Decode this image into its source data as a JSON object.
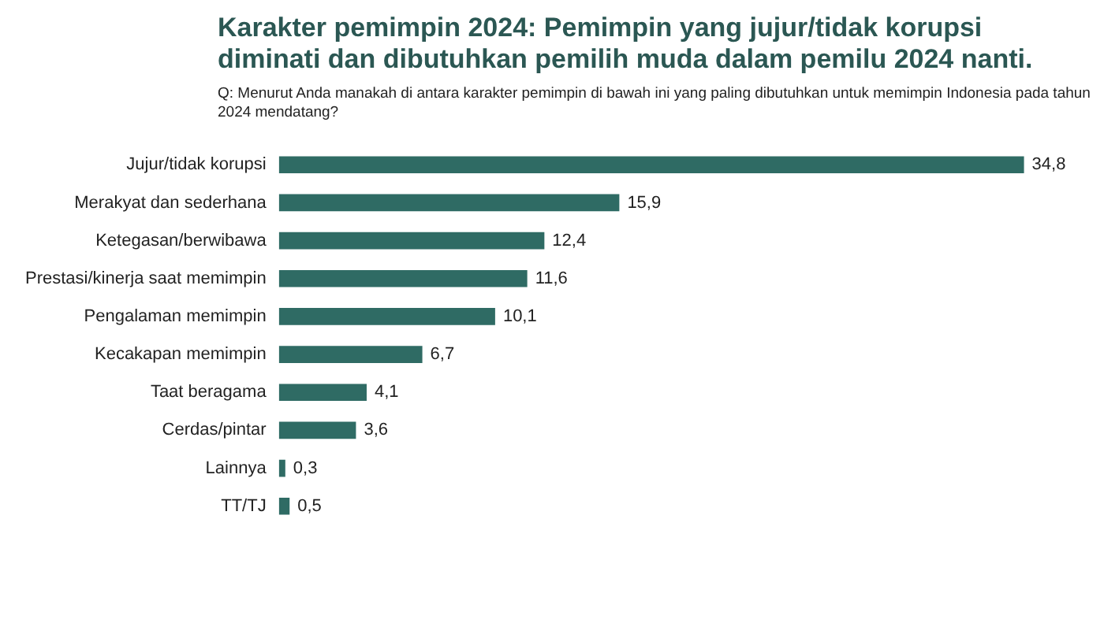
{
  "chart_data": {
    "type": "bar",
    "orientation": "horizontal",
    "title": "Karakter pemimpin 2024: Pemimpin yang jujur/tidak korupsi diminati dan dibutuhkan pemilih muda dalam pemilu 2024 nanti.",
    "subtitle": "Q: Menurut Anda manakah di antara karakter pemimpin di bawah ini yang paling dibutuhkan untuk memimpin Indonesia pada tahun 2024 mendatang?",
    "categories": [
      "Jujur/tidak korupsi",
      "Merakyat dan sederhana",
      "Ketegasan/berwibawa",
      "Prestasi/kinerja saat memimpin",
      "Pengalaman memimpin",
      "Kecakapan memimpin",
      "Taat beragama",
      "Cerdas/pintar",
      "Lainnya",
      "TT/TJ"
    ],
    "values": [
      34.8,
      15.9,
      12.4,
      11.6,
      10.1,
      6.7,
      4.1,
      3.6,
      0.3,
      0.5
    ],
    "value_labels": [
      "34,8",
      "15,9",
      "12,4",
      "11,6",
      "10,1",
      "6,7",
      "4,1",
      "3,6",
      "0,3",
      "0,5"
    ],
    "color": "#2f6b64",
    "tick_labels": "y",
    "grid": false,
    "legend": false
  }
}
